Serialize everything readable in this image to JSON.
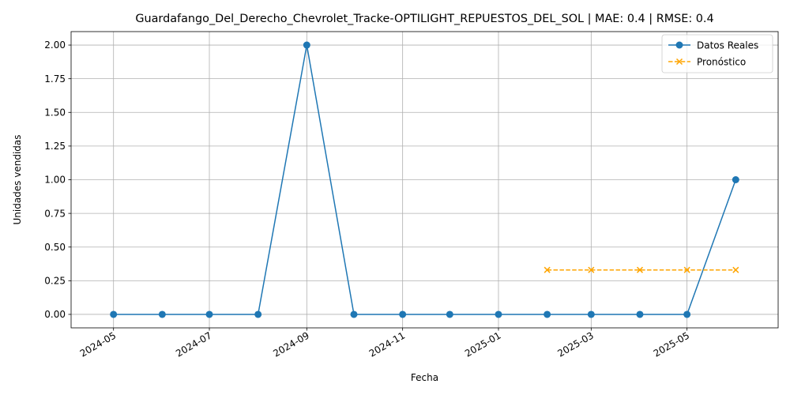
{
  "chart_data": {
    "type": "line",
    "title": "Guardafango_Del_Derecho_Chevrolet_Tracke-OPTILIGHT_REPUESTOS_DEL_SOL | MAE: 0.4 | RMSE: 0.4",
    "xlabel": "Fecha",
    "ylabel": "Unidades vendidas",
    "ylim": [
      -0.1,
      2.1
    ],
    "yticks": [
      0.0,
      0.25,
      0.5,
      0.75,
      1.0,
      1.25,
      1.5,
      1.75,
      2.0
    ],
    "ytick_labels": [
      "0.00",
      "0.25",
      "0.50",
      "0.75",
      "1.00",
      "1.25",
      "1.50",
      "1.75",
      "2.00"
    ],
    "xlim": [
      "2024-04-04",
      "2025-06-28"
    ],
    "xticks": [
      "2024-05-01",
      "2024-07-01",
      "2024-09-01",
      "2024-11-01",
      "2025-01-01",
      "2025-03-01",
      "2025-05-01"
    ],
    "xtick_labels": [
      "2024-05",
      "2024-07",
      "2024-09",
      "2024-11",
      "2025-01",
      "2025-03",
      "2025-05"
    ],
    "grid": true,
    "legend_position": "top-right",
    "series": [
      {
        "name": "Datos Reales",
        "color": "#1f77b4",
        "marker": "circle",
        "line_style": "solid",
        "x": [
          "2024-05-01",
          "2024-06-01",
          "2024-07-01",
          "2024-08-01",
          "2024-09-01",
          "2024-10-01",
          "2024-11-01",
          "2024-12-01",
          "2025-01-01",
          "2025-02-01",
          "2025-03-01",
          "2025-04-01",
          "2025-05-01",
          "2025-06-01"
        ],
        "y": [
          0,
          0,
          0,
          0,
          2,
          0,
          0,
          0,
          0,
          0,
          0,
          0,
          0,
          1
        ]
      },
      {
        "name": "Pronóstico",
        "color": "#ffa500",
        "marker": "x",
        "line_style": "dashed",
        "x": [
          "2025-02-01",
          "2025-03-01",
          "2025-04-01",
          "2025-05-01",
          "2025-06-01"
        ],
        "y": [
          0.33,
          0.33,
          0.33,
          0.33,
          0.33
        ]
      }
    ]
  }
}
